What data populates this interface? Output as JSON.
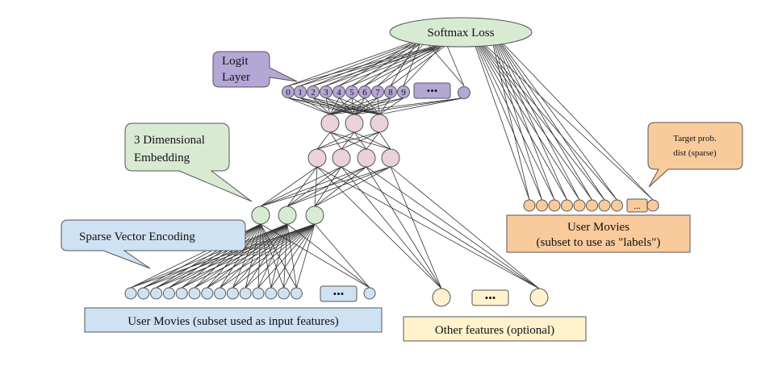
{
  "colors": {
    "loss": "#d9ead3",
    "logit": "#b4a7d6",
    "hidden": "#ead1dc",
    "embedding": "#d9ead3",
    "input": "#cfe2f3",
    "target": "#f9cb9c",
    "other": "#fff2cc",
    "stroke": "#555555"
  },
  "softmax": {
    "label": "Softmax Loss"
  },
  "logit": {
    "callout": [
      "Logit",
      "Layer"
    ],
    "digits": [
      "0",
      "1",
      "2",
      "3",
      "4",
      "5",
      "6",
      "7",
      "8",
      "9"
    ],
    "ellipsis": "•••"
  },
  "embedding": {
    "callout": [
      "3 Dimensional",
      "Embedding"
    ]
  },
  "sparse": {
    "callout": "Sparse Vector Encoding",
    "ellipsis": "•••"
  },
  "input": {
    "label": "User Movies (subset used as input features)"
  },
  "other": {
    "label": "Other features (optional)",
    "ellipsis": "•••"
  },
  "target": {
    "callout": [
      "Target prob.",
      "dist (sparse)"
    ],
    "ellipsis": "...",
    "label": [
      "User Movies",
      "(subset to use as \"labels\")"
    ]
  }
}
